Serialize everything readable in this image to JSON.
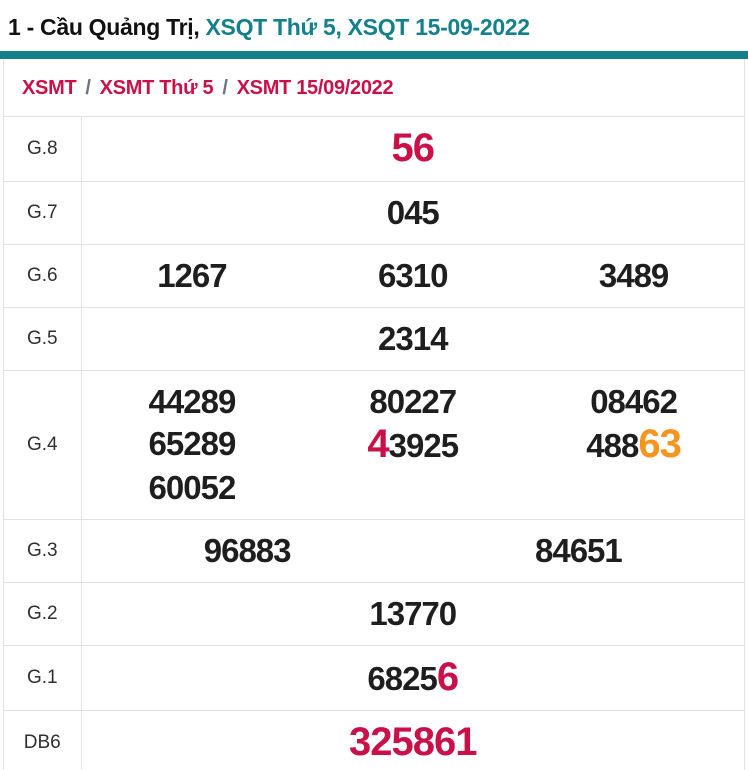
{
  "colors": {
    "teal": "#12818a",
    "red": "#c91048",
    "orange": "#f7941d",
    "number": "#1e1e1e",
    "border": "#e2e2e2",
    "separator": "#6b7280"
  },
  "title": {
    "prefix": "1 - Cầu Quảng Trị, ",
    "highlight": "XSQT Thứ 5, XSQT 15-09-2022"
  },
  "breadcrumb": {
    "separator": "/",
    "items": [
      "XSMT",
      "XSMT Thứ 5",
      "XSMT 15/09/2022"
    ]
  },
  "table": {
    "rows": [
      {
        "label": "G.8",
        "lines": [
          [
            [
              {
                "text": "56",
                "color": "red",
                "big": true
              }
            ]
          ]
        ]
      },
      {
        "label": "G.7",
        "lines": [
          [
            [
              {
                "text": "045"
              }
            ]
          ]
        ]
      },
      {
        "label": "G.6",
        "lines": [
          [
            [
              {
                "text": "1267"
              }
            ],
            [
              {
                "text": "6310"
              }
            ],
            [
              {
                "text": "3489"
              }
            ]
          ]
        ]
      },
      {
        "label": "G.5",
        "lines": [
          [
            [
              {
                "text": "2314"
              }
            ]
          ]
        ]
      },
      {
        "label": "G.4",
        "lines": [
          [
            [
              {
                "text": "44289"
              }
            ],
            [
              {
                "text": "80227"
              }
            ],
            [
              {
                "text": "08462"
              }
            ]
          ],
          [
            [
              {
                "text": "65289"
              }
            ],
            [
              {
                "text": "4",
                "color": "red",
                "big": true
              },
              {
                "text": "3925"
              }
            ],
            [
              {
                "text": "488"
              },
              {
                "text": "63",
                "color": "orange",
                "big": true
              }
            ]
          ],
          [
            [
              {
                "text": "60052"
              }
            ],
            [],
            []
          ]
        ]
      },
      {
        "label": "G.3",
        "lines": [
          [
            [
              {
                "text": "96883"
              }
            ],
            [
              {
                "text": "84651"
              }
            ]
          ]
        ]
      },
      {
        "label": "G.2",
        "lines": [
          [
            [
              {
                "text": "13770"
              }
            ]
          ]
        ]
      },
      {
        "label": "G.1",
        "lines": [
          [
            [
              {
                "text": "6825"
              },
              {
                "text": "6",
                "color": "red",
                "big": true
              }
            ]
          ]
        ]
      },
      {
        "label": "DB6",
        "lines": [
          [
            [
              {
                "text": "325861",
                "color": "red",
                "big": true
              }
            ]
          ]
        ]
      }
    ]
  }
}
